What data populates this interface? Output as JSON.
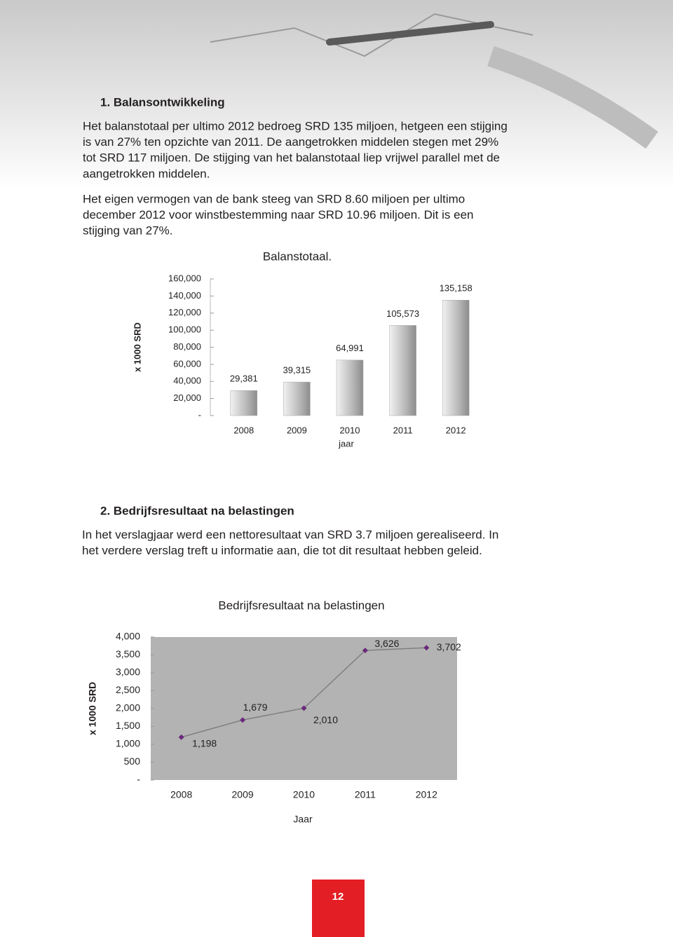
{
  "sections": [
    {
      "heading": "1. Balansontwikkeling",
      "paragraphs": [
        [
          "Het balanstotaal per ultimo 2012 bedroeg SRD 135 miljoen, hetgeen een stijging",
          "is van  27% ten opzichte van 2011. De aangetrokken middelen stegen met 29%",
          "tot SRD 117 miljoen. De stijging van het balanstotaal liep vrijwel parallel met de",
          "aangetrokken middelen."
        ],
        [
          "Het eigen vermogen van de bank steeg van SRD 8.60 miljoen per ultimo",
          "december 2012 voor winstbestemming naar SRD 10.96 miljoen. Dit is een",
          "stijging van 27%."
        ]
      ]
    },
    {
      "heading": "2. Bedrijfsresultaat na belastingen",
      "paragraphs": [
        [
          "In het verslagjaar werd een nettoresultaat van SRD 3.7 miljoen gerealiseerd. In",
          "het verdere verslag treft u informatie aan, die tot dit resultaat hebben geleid."
        ]
      ]
    }
  ],
  "chart_data": [
    {
      "type": "bar",
      "title": "Balanstotaal.",
      "y_label": "x 1000 SRD",
      "x_label": "jaar",
      "categories": [
        "2008",
        "2009",
        "2010",
        "2011",
        "2012"
      ],
      "values": [
        29381,
        39315,
        64991,
        105573,
        135158
      ],
      "value_labels": [
        "29,381",
        "39,315",
        "64,991",
        "105,573",
        "135,158"
      ],
      "color": "#a6a6a6",
      "ylim": [
        0,
        160000
      ],
      "yticks": [
        {
          "value": 0,
          "label": "-"
        },
        {
          "value": 20000,
          "label": "20,000"
        },
        {
          "value": 40000,
          "label": "40,000"
        },
        {
          "value": 60000,
          "label": "60,000"
        },
        {
          "value": 80000,
          "label": "80,000"
        },
        {
          "value": 100000,
          "label": "100,000"
        },
        {
          "value": 120000,
          "label": "120,000"
        },
        {
          "value": 140000,
          "label": "140,000"
        },
        {
          "value": 160000,
          "label": "160,000"
        }
      ]
    },
    {
      "type": "line",
      "title": "Bedrijfsresultaat na belastingen",
      "y_label": "x 1000 SRD",
      "x_label": "Jaar",
      "categories": [
        "2008",
        "2009",
        "2010",
        "2011",
        "2012"
      ],
      "values": [
        1198,
        1679,
        2010,
        3626,
        3702
      ],
      "value_labels": [
        "1,198",
        "1,679",
        "2,010",
        "3,626",
        "3,702"
      ],
      "color": "#808080",
      "marker_color": "#6a2a7a",
      "plot_background": "#b3b3b3",
      "ylim": [
        0,
        4000
      ],
      "yticks": [
        {
          "value": 0,
          "label": "-"
        },
        500,
        {
          "value": 1000,
          "label": "1,000"
        },
        {
          "value": 1500,
          "label": "1,500"
        },
        {
          "value": 2000,
          "label": "2,000"
        },
        {
          "value": 2500,
          "label": "2,500"
        },
        {
          "value": 3000,
          "label": "3,000"
        },
        {
          "value": 3500,
          "label": "3,500"
        },
        {
          "value": 4000,
          "label": "4,000"
        }
      ]
    }
  ],
  "footer": {
    "page_number": "12"
  }
}
